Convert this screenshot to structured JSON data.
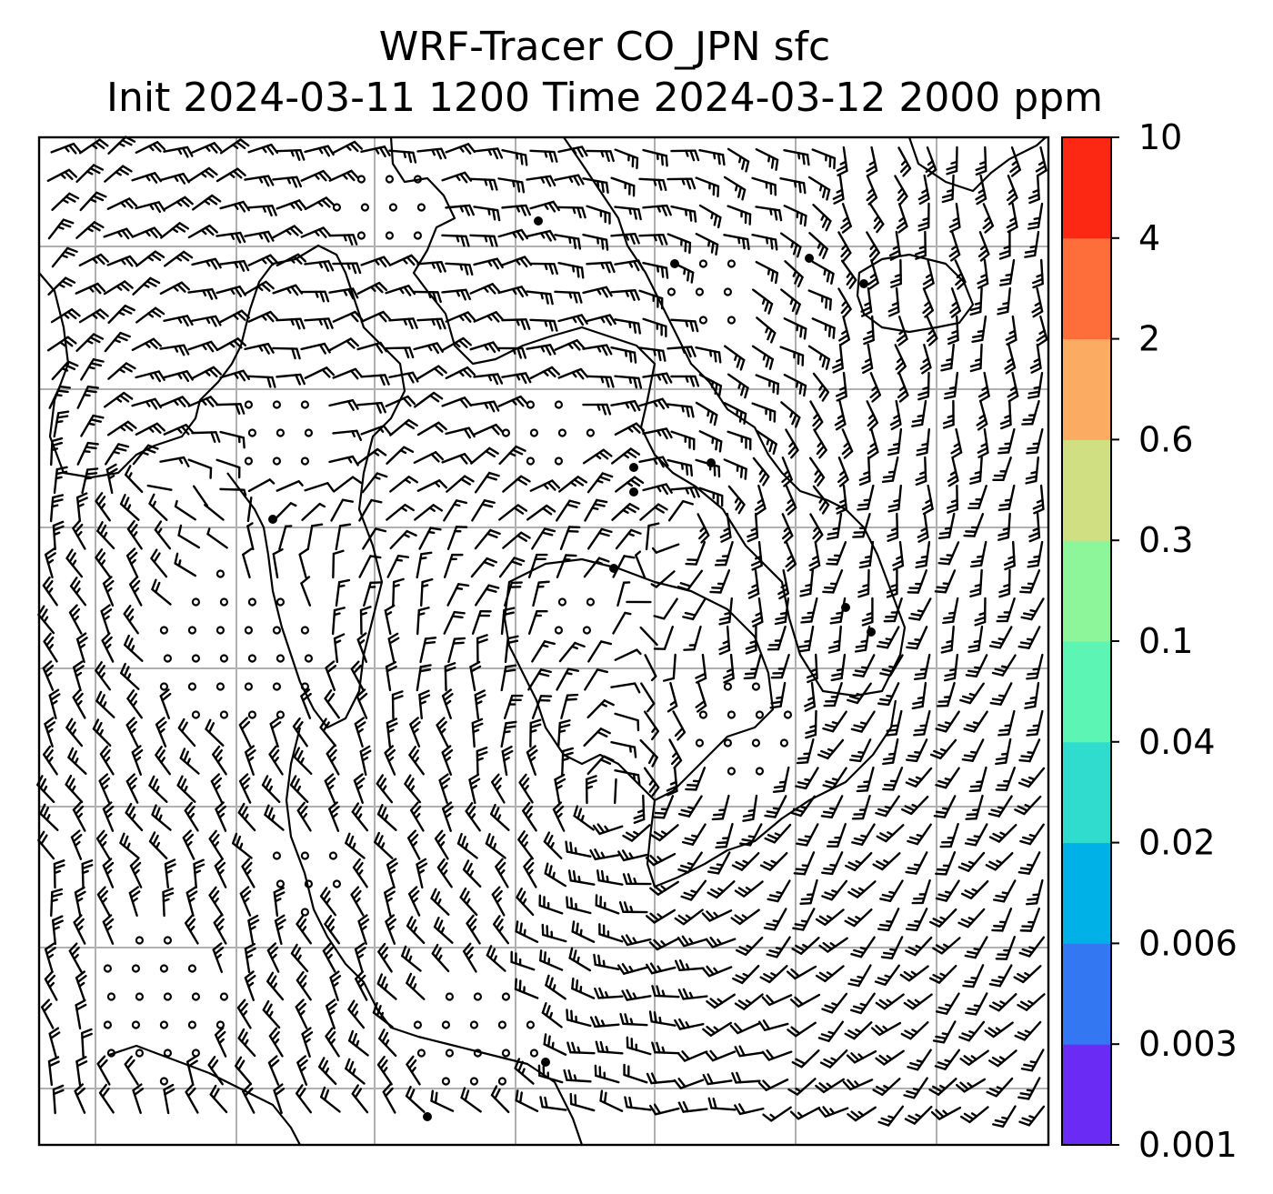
{
  "title": {
    "line1": "WRF-Tracer CO_JPN sfc",
    "line2": "Init 2024-03-11 1200 Time 2024-03-12 2000 ppm"
  },
  "colorbar": {
    "levels": [
      "0.001",
      "0.003",
      "0.006",
      "0.02",
      "0.04",
      "0.1",
      "0.3",
      "0.6",
      "2",
      "4",
      "10"
    ],
    "colors": [
      "#6a2cf5",
      "#3477f2",
      "#00b1e8",
      "#2fdcce",
      "#5cf5b3",
      "#8df59a",
      "#d0df82",
      "#fcac62",
      "#fe6e3a",
      "#fd2814"
    ]
  },
  "map": {
    "gridline_color": "#b0b0b0",
    "frame_color": "#000000",
    "coastline_color": "#000000",
    "barb_color": "#000000"
  }
}
